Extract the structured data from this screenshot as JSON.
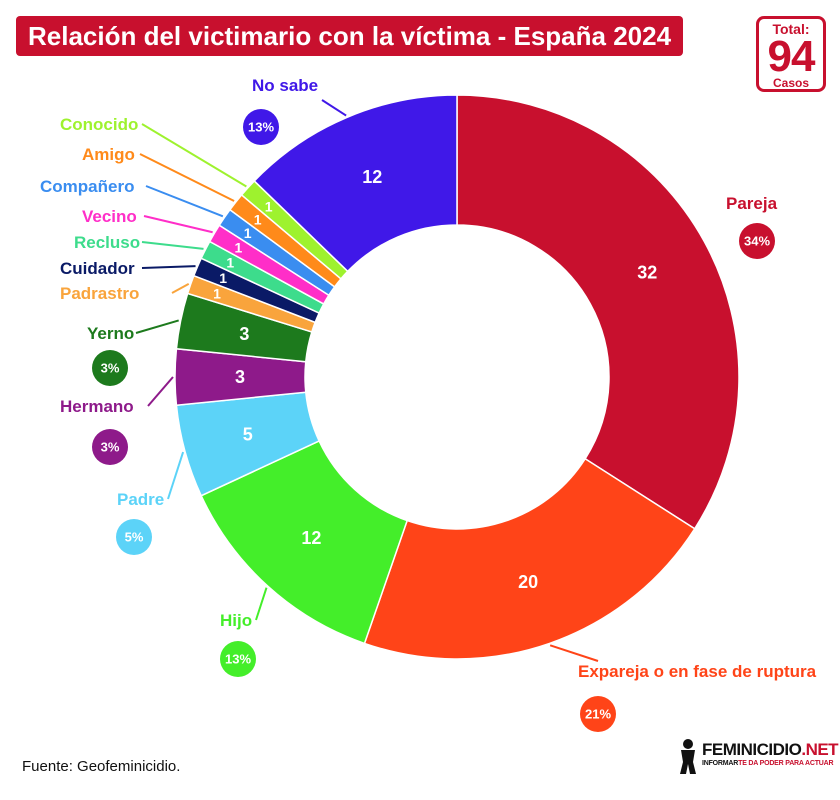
{
  "title": "Relación del victimario con la víctima - España 2024",
  "total": {
    "label": "Total:",
    "value": "94",
    "unit": "Casos"
  },
  "source": "Fuente: Geofeminicidio.",
  "logo": {
    "brand": "FEMINICIDIO",
    "brand_suffix": ".NET",
    "tagline_a": "INFORMAR",
    "tagline_b": "TE DA PODER PARA ACTUAR"
  },
  "chart_data": {
    "type": "pie",
    "style": "donut",
    "title": "Relación del victimario con la víctima - España 2024",
    "total": 94,
    "slices": [
      {
        "label": "Pareja",
        "value": 32,
        "percent": "34%",
        "color": "#c8102e"
      },
      {
        "label": "Expareja o en fase de ruptura",
        "value": 20,
        "percent": "21%",
        "color": "#ff4418"
      },
      {
        "label": "Hijo",
        "value": 12,
        "percent": "13%",
        "color": "#44ee2a"
      },
      {
        "label": "Padre",
        "value": 5,
        "percent": "5%",
        "color": "#5cd3f8"
      },
      {
        "label": "Hermano",
        "value": 3,
        "percent": "3%",
        "color": "#8e1a8a"
      },
      {
        "label": "Yerno",
        "value": 3,
        "percent": "3%",
        "color": "#1d7a1d"
      },
      {
        "label": "Padrastro",
        "value": 1,
        "percent": "",
        "color": "#f9a43c"
      },
      {
        "label": "Cuidador",
        "value": 1,
        "percent": "",
        "color": "#0a1a66"
      },
      {
        "label": "Recluso",
        "value": 1,
        "percent": "",
        "color": "#3ddc8c"
      },
      {
        "label": "Vecino",
        "value": 1,
        "percent": "",
        "color": "#ff2ec8"
      },
      {
        "label": "Compañero",
        "value": 1,
        "percent": "",
        "color": "#3a8df0"
      },
      {
        "label": "Amigo",
        "value": 1,
        "percent": "",
        "color": "#ff8a1a"
      },
      {
        "label": "Conocido",
        "value": 1,
        "percent": "",
        "color": "#9ef22e"
      },
      {
        "label": "No sabe",
        "value": 12,
        "percent": "13%",
        "color": "#4018e8"
      }
    ]
  }
}
